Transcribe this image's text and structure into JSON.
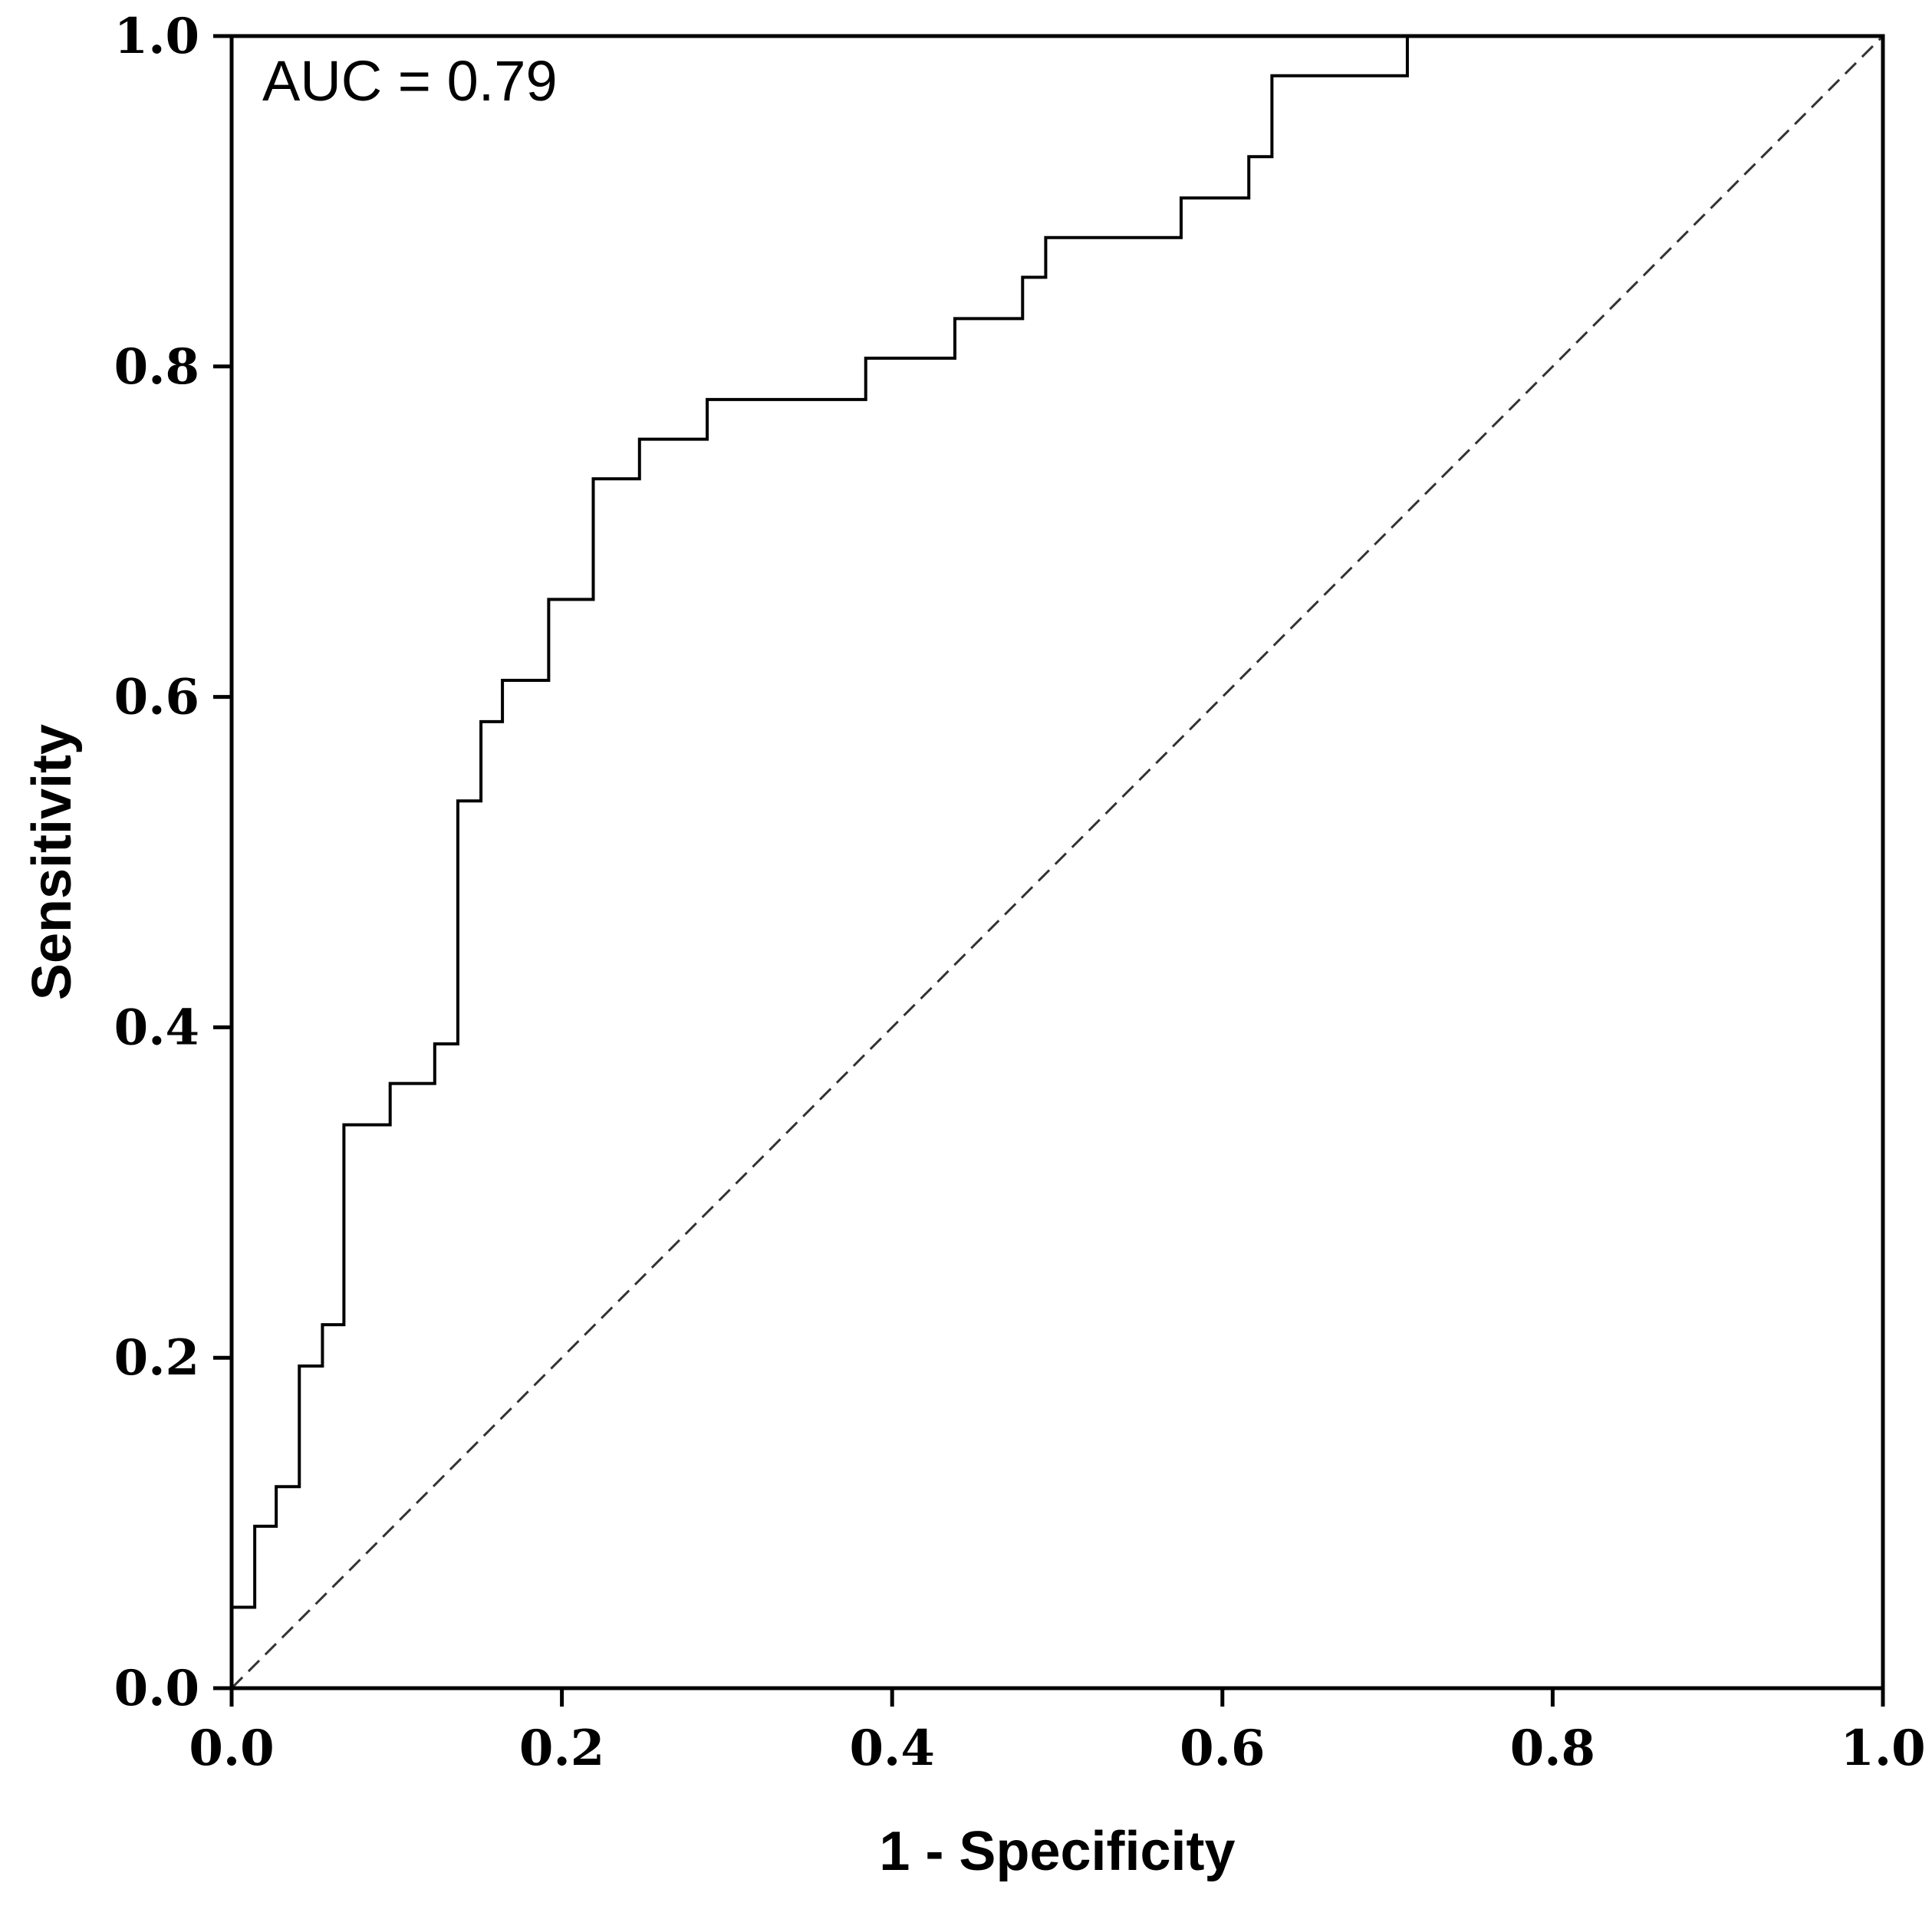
{
  "chart_data": {
    "type": "line",
    "title": "",
    "xlabel": "1 - Specificity",
    "ylabel": "Sensitivity",
    "xlim": [
      0,
      1
    ],
    "ylim": [
      0,
      1
    ],
    "x_ticks": [
      0.0,
      0.2,
      0.4,
      0.6,
      0.8,
      1.0
    ],
    "y_ticks": [
      0.0,
      0.2,
      0.4,
      0.6,
      0.8,
      1.0
    ],
    "x_tick_labels": [
      "0.0",
      "0.2",
      "0.4",
      "0.6",
      "0.8",
      "1.0"
    ],
    "y_tick_labels": [
      "0.0",
      "0.2",
      "0.4",
      "0.6",
      "0.8",
      "1.0"
    ],
    "grid": false,
    "annotation": "AUC = 0.79",
    "series": [
      {
        "style": "step-solid",
        "color": "#000000",
        "x": [
          0.0,
          0.0,
          0.014,
          0.014,
          0.027,
          0.027,
          0.041,
          0.041,
          0.055,
          0.055,
          0.068,
          0.068,
          0.096,
          0.096,
          0.123,
          0.123,
          0.137,
          0.137,
          0.151,
          0.151,
          0.164,
          0.164,
          0.192,
          0.192,
          0.219,
          0.219,
          0.247,
          0.247,
          0.288,
          0.288,
          0.384,
          0.384,
          0.438,
          0.438,
          0.479,
          0.479,
          0.493,
          0.493,
          0.575,
          0.575,
          0.616,
          0.616,
          0.63,
          0.63,
          0.712,
          0.712,
          1.0
        ],
        "y": [
          0.0,
          0.049,
          0.049,
          0.098,
          0.098,
          0.122,
          0.122,
          0.195,
          0.195,
          0.22,
          0.22,
          0.341,
          0.341,
          0.366,
          0.366,
          0.39,
          0.39,
          0.537,
          0.537,
          0.585,
          0.585,
          0.61,
          0.61,
          0.659,
          0.659,
          0.732,
          0.732,
          0.756,
          0.756,
          0.78,
          0.78,
          0.805,
          0.805,
          0.829,
          0.829,
          0.854,
          0.854,
          0.878,
          0.878,
          0.902,
          0.902,
          0.927,
          0.927,
          0.976,
          0.976,
          1.0,
          1.0
        ]
      },
      {
        "style": "reference-dashed",
        "color": "#333333",
        "x": [
          0.0,
          1.0
        ],
        "y": [
          0.0,
          1.0
        ]
      }
    ]
  }
}
